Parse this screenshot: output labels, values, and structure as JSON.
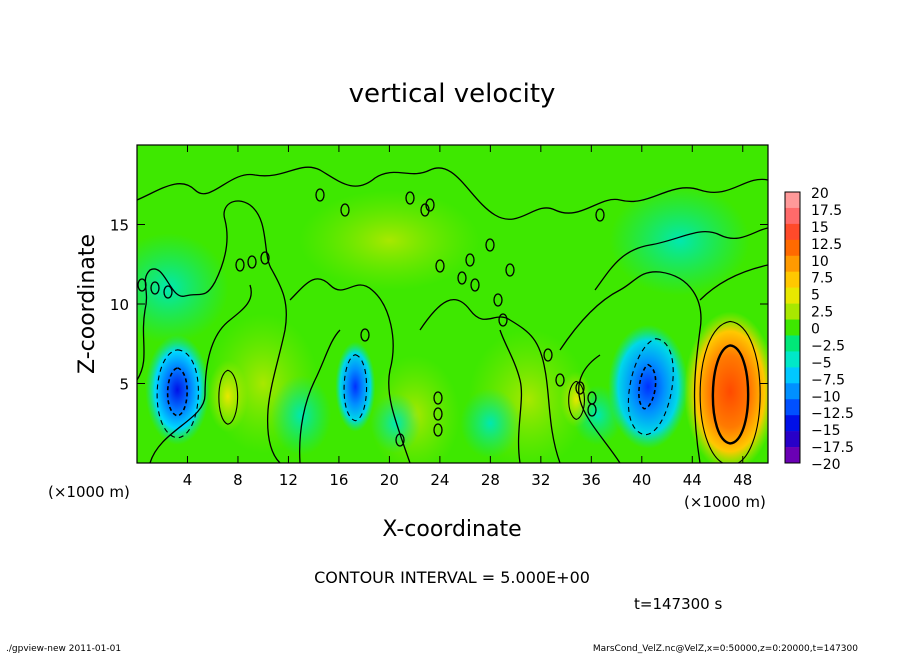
{
  "chart_data": {
    "type": "heatmap",
    "title": "vertical velocity",
    "xlabel": "X-coordinate",
    "ylabel": "Z-coordinate",
    "x_unit": "(×1000 m)",
    "y_unit": "(×1000 m)",
    "xlim": [
      0,
      50
    ],
    "ylim": [
      0,
      20
    ],
    "x_ticks": [
      4,
      8,
      12,
      16,
      20,
      24,
      28,
      32,
      36,
      40,
      44,
      48
    ],
    "y_ticks": [
      5,
      10,
      15
    ],
    "colorbar": {
      "levels": [
        20,
        17.5,
        15,
        12.5,
        10,
        7.5,
        5,
        2.5,
        0,
        -2.5,
        -5,
        -7.5,
        -10,
        -12.5,
        -15,
        -17.5,
        -20
      ],
      "labels": [
        "20",
        "17.5",
        "15",
        "12.5",
        "10",
        "7.5",
        "5",
        "2.5",
        "0",
        "−2.5",
        "−5",
        "−7.5",
        "−10",
        "−12.5",
        "−15",
        "−17.5",
        "−20"
      ],
      "colors": [
        "#ff9999",
        "#ff6a6a",
        "#ff4a2a",
        "#ff6a00",
        "#ff9a00",
        "#ffc800",
        "#e8e800",
        "#a8e800",
        "#3ee800",
        "#00e878",
        "#00e8c8",
        "#00c8ff",
        "#0090ff",
        "#0050ff",
        "#0010e8",
        "#2800c8",
        "#6a00b4"
      ]
    },
    "features": [
      {
        "x": 3.2,
        "z": 4.6,
        "value": -12
      },
      {
        "x": 17.3,
        "z": 4.8,
        "value": -10.5
      },
      {
        "x": 40.5,
        "z": 4.8,
        "value": -10
      },
      {
        "x": 47.0,
        "z": 4.5,
        "value": 13
      },
      {
        "x": 7.2,
        "z": 4.2,
        "value": 6
      },
      {
        "x": 34.8,
        "z": 4.0,
        "value": 6
      }
    ]
  },
  "contour_interval_text": "CONTOUR INTERVAL = 5.000E+00",
  "time_text": "t=147300 s",
  "footer_left": "./gpview-new  2011-01-01",
  "footer_right": "MarsCond_VelZ.nc@VelZ,x=0:50000,z=0:20000,t=147300"
}
